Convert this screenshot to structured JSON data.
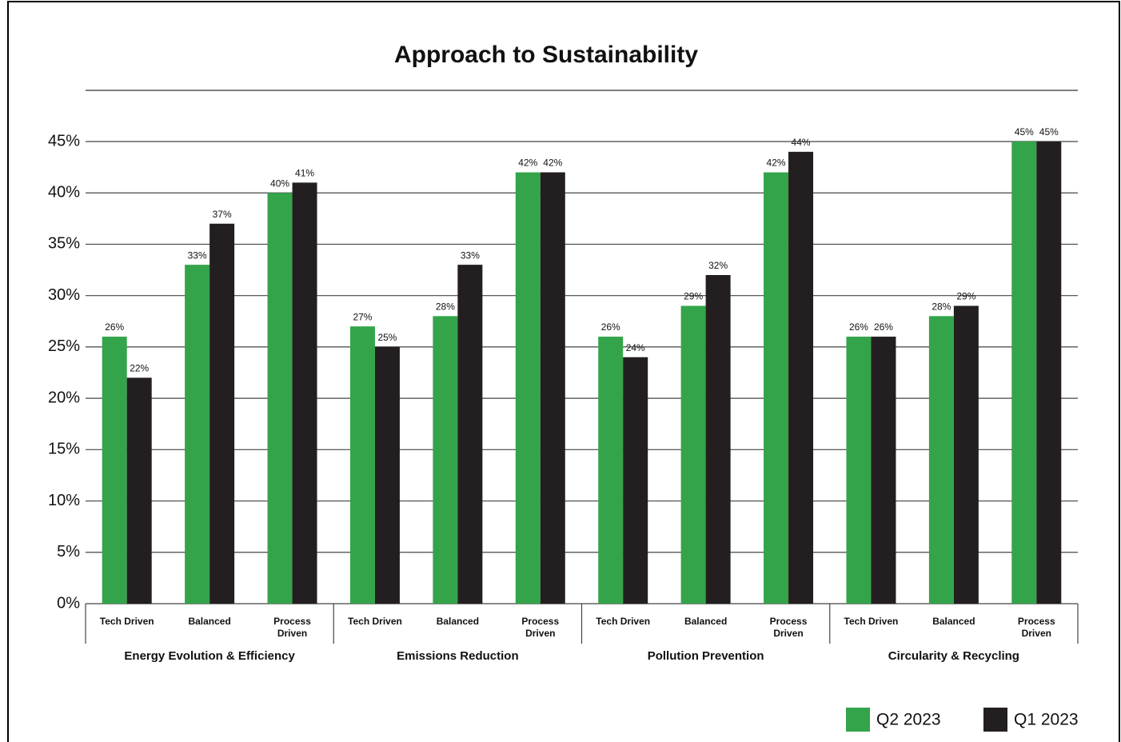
{
  "chart_data": {
    "type": "bar",
    "title": "Approach to Sustainability",
    "groups": [
      "Energy Evolution & Efficiency",
      "Emissions Reduction",
      "Pollution Prevention",
      "Circularity & Recycling"
    ],
    "categories": [
      "Tech Driven",
      "Balanced",
      "Process Driven",
      "Tech Driven",
      "Balanced",
      "Process Driven",
      "Tech Driven",
      "Balanced",
      "Process Driven",
      "Tech Driven",
      "Balanced",
      "Process Driven"
    ],
    "series": [
      {
        "name": "Q2 2023",
        "color": "#34a44a",
        "values": [
          26,
          33,
          40,
          27,
          28,
          42,
          26,
          29,
          42,
          26,
          28,
          45
        ],
        "value_labels": [
          "26%",
          "33%",
          "40%",
          "27%",
          "28%",
          "42%",
          "26%",
          "29%",
          "42%",
          "26%",
          "28%",
          "45%"
        ]
      },
      {
        "name": "Q1 2023",
        "color": "#231f20",
        "values": [
          22,
          37,
          41,
          25,
          33,
          42,
          24,
          32,
          44,
          26,
          29,
          45
        ],
        "value_labels": [
          "22%",
          "37%",
          "41%",
          "25%",
          "33%",
          "42%",
          "24%",
          "32%",
          "44%",
          "26%",
          "29%",
          "45%"
        ]
      }
    ],
    "ylim": [
      0,
      45
    ],
    "yticks": [
      {
        "value": 0,
        "label": "0%"
      },
      {
        "value": 5,
        "label": "5%"
      },
      {
        "value": 10,
        "label": "10%"
      },
      {
        "value": 15,
        "label": "15%"
      },
      {
        "value": 20,
        "label": "20%"
      },
      {
        "value": 25,
        "label": "25%"
      },
      {
        "value": 30,
        "label": "30%"
      },
      {
        "value": 35,
        "label": "35%"
      },
      {
        "value": 40,
        "label": "40%"
      },
      {
        "value": 45,
        "label": "45%"
      }
    ],
    "grid": true,
    "legend": "bottom-right"
  }
}
